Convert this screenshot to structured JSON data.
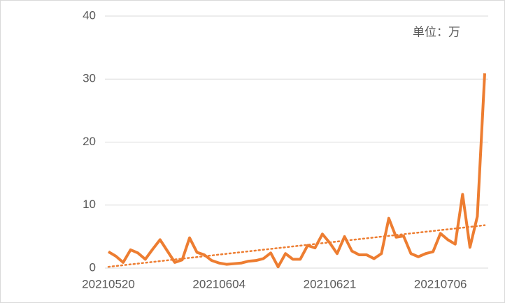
{
  "chart_data": {
    "type": "line",
    "annotation": "单位：万",
    "categories": [
      "20210520",
      null,
      null,
      null,
      null,
      null,
      null,
      null,
      null,
      null,
      null,
      null,
      null,
      null,
      null,
      "20210604",
      null,
      null,
      null,
      null,
      null,
      null,
      null,
      null,
      null,
      null,
      null,
      null,
      null,
      null,
      "20210621",
      null,
      null,
      null,
      null,
      null,
      null,
      null,
      null,
      null,
      null,
      null,
      null,
      null,
      null,
      "20210706",
      null,
      null,
      null,
      null,
      null,
      null
    ],
    "series": [
      {
        "color": "#ed7d31",
        "values": [
          2.6,
          1.9,
          0.9,
          2.9,
          2.4,
          1.4,
          3.0,
          4.5,
          2.7,
          0.9,
          1.3,
          4.8,
          2.5,
          2.1,
          1.2,
          0.8,
          0.6,
          0.7,
          0.8,
          1.1,
          1.2,
          1.5,
          2.4,
          0.2,
          2.3,
          1.4,
          1.4,
          3.6,
          3.2,
          5.4,
          4.0,
          2.3,
          5.0,
          2.7,
          2.1,
          2.1,
          1.5,
          2.3,
          7.9,
          4.9,
          5.1,
          2.3,
          1.8,
          2.3,
          2.6,
          5.5,
          4.5,
          3.8,
          11.7,
          3.3,
          8.2,
          30.9
        ]
      }
    ],
    "trendline": {
      "color": "#ed7d31",
      "style": "dotted",
      "values": [
        0.2,
        6.8
      ]
    },
    "ylim": [
      0,
      40
    ],
    "yticks": [
      0,
      10,
      20,
      30,
      40
    ],
    "grid": true
  }
}
